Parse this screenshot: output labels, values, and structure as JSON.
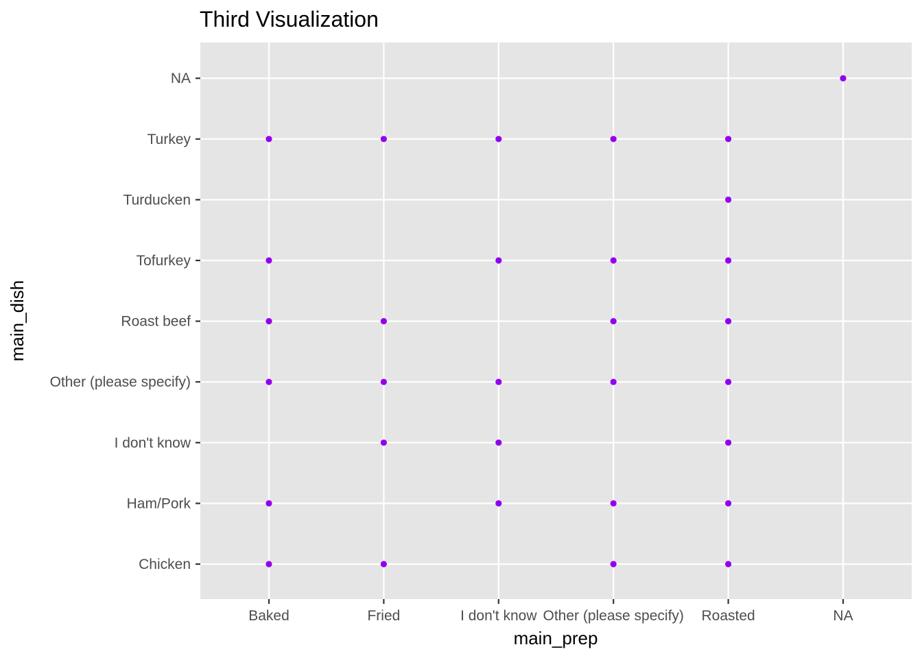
{
  "chart_data": {
    "type": "scatter",
    "title": "Third Visualization",
    "xlabel": "main_prep",
    "ylabel": "main_dish",
    "x_categories": [
      "Baked",
      "Fried",
      "I don't know",
      "Other (please specify)",
      "Roasted",
      "NA"
    ],
    "y_categories": [
      "Chicken",
      "Ham/Pork",
      "I don't know",
      "Other (please specify)",
      "Roast beef",
      "Tofurkey",
      "Turducken",
      "Turkey",
      "NA"
    ],
    "points": [
      {
        "x": "NA",
        "y": "NA"
      },
      {
        "x": "Baked",
        "y": "Turkey"
      },
      {
        "x": "Fried",
        "y": "Turkey"
      },
      {
        "x": "I don't know",
        "y": "Turkey"
      },
      {
        "x": "Other (please specify)",
        "y": "Turkey"
      },
      {
        "x": "Roasted",
        "y": "Turkey"
      },
      {
        "x": "Roasted",
        "y": "Turducken"
      },
      {
        "x": "Baked",
        "y": "Tofurkey"
      },
      {
        "x": "I don't know",
        "y": "Tofurkey"
      },
      {
        "x": "Other (please specify)",
        "y": "Tofurkey"
      },
      {
        "x": "Roasted",
        "y": "Tofurkey"
      },
      {
        "x": "Baked",
        "y": "Roast beef"
      },
      {
        "x": "Fried",
        "y": "Roast beef"
      },
      {
        "x": "Other (please specify)",
        "y": "Roast beef"
      },
      {
        "x": "Roasted",
        "y": "Roast beef"
      },
      {
        "x": "Baked",
        "y": "Other (please specify)"
      },
      {
        "x": "Fried",
        "y": "Other (please specify)"
      },
      {
        "x": "I don't know",
        "y": "Other (please specify)"
      },
      {
        "x": "Other (please specify)",
        "y": "Other (please specify)"
      },
      {
        "x": "Roasted",
        "y": "Other (please specify)"
      },
      {
        "x": "Fried",
        "y": "I don't know"
      },
      {
        "x": "I don't know",
        "y": "I don't know"
      },
      {
        "x": "Roasted",
        "y": "I don't know"
      },
      {
        "x": "Baked",
        "y": "Ham/Pork"
      },
      {
        "x": "I don't know",
        "y": "Ham/Pork"
      },
      {
        "x": "Other (please specify)",
        "y": "Ham/Pork"
      },
      {
        "x": "Roasted",
        "y": "Ham/Pork"
      },
      {
        "x": "Baked",
        "y": "Chicken"
      },
      {
        "x": "Fried",
        "y": "Chicken"
      },
      {
        "x": "Other (please specify)",
        "y": "Chicken"
      },
      {
        "x": "Roasted",
        "y": "Chicken"
      }
    ],
    "point_color": "#9400ef",
    "panel_color": "#e5e5e5",
    "grid_color": "#ffffff",
    "grid": true,
    "legend": "none"
  }
}
